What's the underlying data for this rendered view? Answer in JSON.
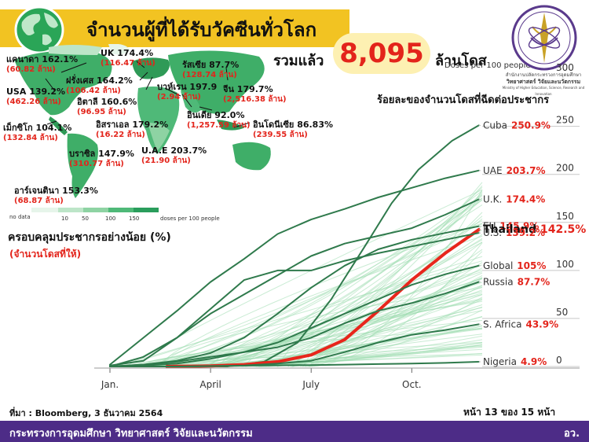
{
  "title": "จำนวนผู้ที่ได้รับวัคซีนทั่วโลก",
  "total": {
    "label": "รวมแล้ว",
    "value": "8,095",
    "unit": "ล้านโดส"
  },
  "logo_caption": [
    "สำนักงานปลัดกระทรวงการอุดมศึกษา",
    "วิทยาศาสตร์ วิจัยและนวัตกรรม",
    "Ministry of Higher Education, Science, Research and Innovation"
  ],
  "doses_caption": "Doses per 100 people",
  "ratio_caption": "ร้อยละของจำนวนโดสที่ฉีดต่อประชากร",
  "countries": [
    {
      "name": "แคนาดา 162.1%",
      "sub": "(60.82 ล้าน)"
    },
    {
      "name": "UK 174.4%",
      "sub": "(116.47 ล้าน)"
    },
    {
      "name": "ฝรั่งเศส 164.2%",
      "sub": "(106.42 ล้าน)"
    },
    {
      "name": "USA 139.2%",
      "sub": "(462.26 ล้าน)"
    },
    {
      "name": "อิตาลี 160.6%",
      "sub": "(96.95 ล้าน)"
    },
    {
      "name": "เม็กซิโก 104.1%",
      "sub": "(132.84 ล้าน)"
    },
    {
      "name": "บราซิล 147.9%",
      "sub": "(310.77 ล้าน)"
    },
    {
      "name": "อาร์เจนตินา 153.3%",
      "sub": "(68.87 ล้าน)"
    },
    {
      "name": "รัสเซีย 87.7%",
      "sub": "(128.74 ล้าน)"
    },
    {
      "name": "บาห์เรน 197.9",
      "sub": "(2.94 ล้าน)"
    },
    {
      "name": "จีน 179.7%",
      "sub": "(2,516.38 ล้าน)"
    },
    {
      "name": "อินเดีย 92.0%",
      "sub": "(1,257.59 ล้าน)"
    },
    {
      "name": "อิสราเอล 179.2%",
      "sub": "(16.22 ล้าน)"
    },
    {
      "name": "อินโดนีเซีย 86.83%",
      "sub": "(239.55 ล้าน)"
    },
    {
      "name": "U.A.E 203.7%",
      "sub": "(21.90 ล้าน)"
    }
  ],
  "map_legend": {
    "nodata": "no data",
    "ticks": [
      "10",
      "50",
      "100",
      "150"
    ],
    "unit": "doses per 100 people",
    "colors": [
      "#e6f5ea",
      "#bde5c8",
      "#8ed3a3",
      "#4fb978",
      "#2a9d5c"
    ]
  },
  "coverage_label": "ครอบคลุมประชากรอย่างน้อย (%)",
  "coverage_sub": "(จำนวนโดสที่ให้)",
  "source": "ที่มา : Bloomberg, 3 ธันวาคม 2564",
  "page": "หน้า 13 ของ 15 หน้า",
  "footer": "กระทรวงการอุดมศึกษา วิทยาศาสตร์ วิจัยและนวัตกรรม",
  "footer_right": "อว.",
  "chart_data": {
    "type": "line",
    "xlabel": "",
    "ylabel": "Doses per 100 people",
    "x_ticks": [
      "Jan.",
      "April",
      "July",
      "Oct."
    ],
    "y_ticks": [
      0,
      50,
      100,
      150,
      200,
      250
    ],
    "y_top_label": "300",
    "ylim": [
      0,
      262
    ],
    "x_range_months": [
      0,
      11.1
    ],
    "colors": {
      "highlight": "#e8261c",
      "major": "#2f7a4c",
      "minor": "#9fdcb0"
    },
    "series": [
      {
        "name": "Cuba",
        "value_label": "250.9%",
        "points": [
          [
            0,
            0
          ],
          [
            3.5,
            0
          ],
          [
            4.6,
            5
          ],
          [
            5.6,
            25
          ],
          [
            6.6,
            70
          ],
          [
            7.6,
            125
          ],
          [
            8.4,
            170
          ],
          [
            9.2,
            205
          ],
          [
            10.2,
            235
          ],
          [
            11,
            251
          ]
        ]
      },
      {
        "name": "UAE",
        "value_label": "203.7%",
        "points": [
          [
            0,
            2
          ],
          [
            1,
            30
          ],
          [
            2,
            58
          ],
          [
            3,
            88
          ],
          [
            4,
            112
          ],
          [
            5,
            138
          ],
          [
            6,
            153
          ],
          [
            7,
            164
          ],
          [
            8,
            176
          ],
          [
            9,
            186
          ],
          [
            10,
            196
          ],
          [
            11,
            204
          ]
        ]
      },
      {
        "name": "U.K.",
        "value_label": "174.4%",
        "points": [
          [
            0,
            1
          ],
          [
            1,
            6
          ],
          [
            2,
            30
          ],
          [
            3,
            55
          ],
          [
            4,
            75
          ],
          [
            5,
            95
          ],
          [
            6,
            115
          ],
          [
            7,
            128
          ],
          [
            8,
            136
          ],
          [
            9,
            144
          ],
          [
            10,
            158
          ],
          [
            11,
            174
          ]
        ]
      },
      {
        "name": "EU",
        "value_label": "145.9%",
        "points": [
          [
            0,
            0
          ],
          [
            1,
            2
          ],
          [
            2,
            6
          ],
          [
            3,
            14
          ],
          [
            4,
            30
          ],
          [
            5,
            55
          ],
          [
            6,
            82
          ],
          [
            7,
            105
          ],
          [
            8,
            122
          ],
          [
            9,
            132
          ],
          [
            10,
            139
          ],
          [
            11,
            146
          ]
        ]
      },
      {
        "name": "Thailand",
        "value_label": "142.5%",
        "highlight": true,
        "points": [
          [
            1.7,
            0
          ],
          [
            2,
            0.2
          ],
          [
            3,
            0.6
          ],
          [
            4,
            2
          ],
          [
            5,
            5
          ],
          [
            6,
            12
          ],
          [
            7,
            28
          ],
          [
            8,
            58
          ],
          [
            9,
            90
          ],
          [
            10,
            118
          ],
          [
            11,
            142.5
          ]
        ]
      },
      {
        "name": "U.S.",
        "value_label": "139.2%",
        "points": [
          [
            0,
            0
          ],
          [
            1,
            10
          ],
          [
            2,
            30
          ],
          [
            3,
            60
          ],
          [
            4,
            90
          ],
          [
            5,
            100
          ],
          [
            6,
            100
          ],
          [
            7,
            110
          ],
          [
            8,
            118
          ],
          [
            9,
            125
          ],
          [
            10,
            132
          ],
          [
            11,
            139
          ]
        ]
      },
      {
        "name": "Global",
        "value_label": "105%",
        "points": [
          [
            0,
            0
          ],
          [
            1,
            1
          ],
          [
            2,
            3
          ],
          [
            3,
            8
          ],
          [
            4,
            15
          ],
          [
            5,
            25
          ],
          [
            6,
            40
          ],
          [
            7,
            55
          ],
          [
            8,
            70
          ],
          [
            9,
            85
          ],
          [
            10,
            96
          ],
          [
            11,
            105
          ]
        ]
      },
      {
        "name": "Russia",
        "value_label": "87.7%",
        "points": [
          [
            0,
            0
          ],
          [
            1,
            2
          ],
          [
            2,
            5
          ],
          [
            3,
            10
          ],
          [
            4,
            15
          ],
          [
            5,
            20
          ],
          [
            6,
            30
          ],
          [
            7,
            45
          ],
          [
            8,
            58
          ],
          [
            9,
            66
          ],
          [
            10,
            76
          ],
          [
            11,
            88
          ]
        ]
      },
      {
        "name": "S. Africa",
        "value_label": "43.9%",
        "points": [
          [
            0,
            0
          ],
          [
            2,
            0
          ],
          [
            3,
            0.5
          ],
          [
            4,
            1
          ],
          [
            5,
            3
          ],
          [
            6,
            6
          ],
          [
            7,
            15
          ],
          [
            8,
            25
          ],
          [
            9,
            33
          ],
          [
            10,
            38
          ],
          [
            11,
            44
          ]
        ]
      },
      {
        "name": "Nigeria",
        "value_label": "4.9%",
        "points": [
          [
            0,
            0
          ],
          [
            2,
            0
          ],
          [
            3,
            0.3
          ],
          [
            4,
            0.8
          ],
          [
            5,
            1.2
          ],
          [
            6,
            1.5
          ],
          [
            7,
            2
          ],
          [
            8,
            2.5
          ],
          [
            9,
            3
          ],
          [
            10,
            3.8
          ],
          [
            11,
            4.9
          ]
        ]
      }
    ]
  }
}
